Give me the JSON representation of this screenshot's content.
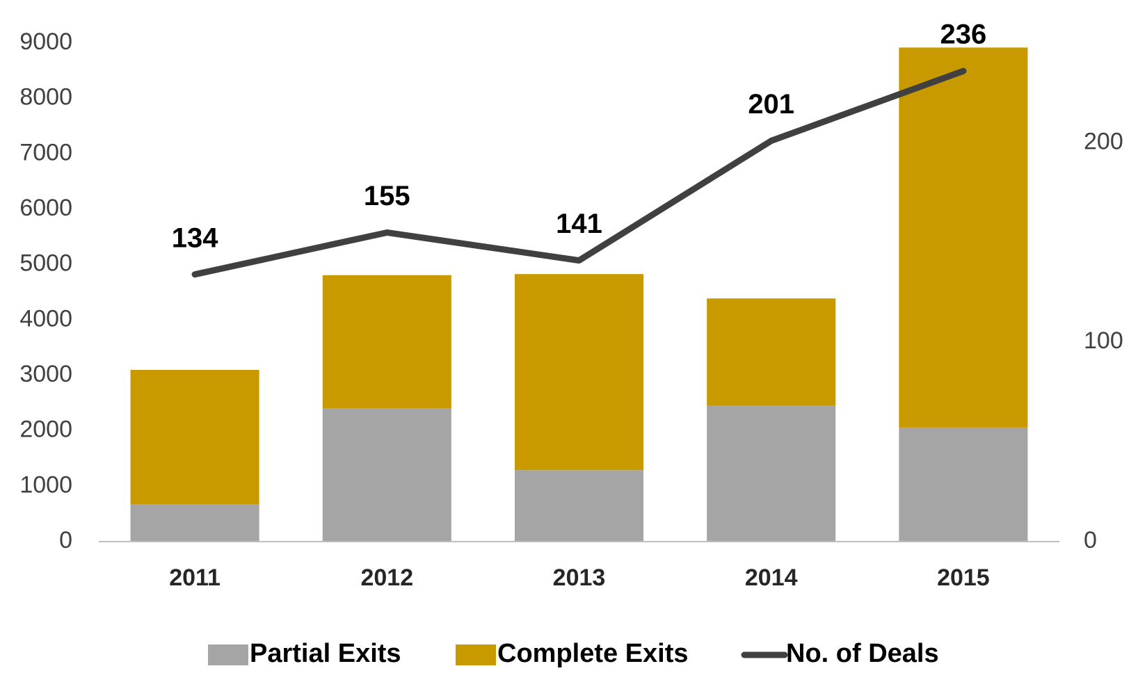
{
  "chart_data": {
    "type": "bar",
    "categories": [
      "2011",
      "2012",
      "2013",
      "2014",
      "2015"
    ],
    "series": [
      {
        "name": "Partial Exits",
        "color": "#a5a5a5",
        "values": [
          670,
          2400,
          1290,
          2460,
          2060
        ]
      },
      {
        "name": "Complete Exits",
        "color": "#c99a00",
        "values": [
          2430,
          2410,
          3540,
          1930,
          6860
        ]
      },
      {
        "name": "No. of Deals",
        "color": "#404040",
        "values": [
          134,
          155,
          141,
          201,
          236
        ],
        "axis": "y2",
        "type": "line"
      }
    ],
    "stacked": true,
    "ylim": [
      0,
      9000
    ],
    "yticks": [
      0,
      1000,
      2000,
      3000,
      4000,
      5000,
      6000,
      7000,
      8000,
      9000
    ],
    "y2lim": [
      0,
      250
    ],
    "y2ticks": [
      0,
      100,
      200
    ],
    "legend": "bottom"
  }
}
